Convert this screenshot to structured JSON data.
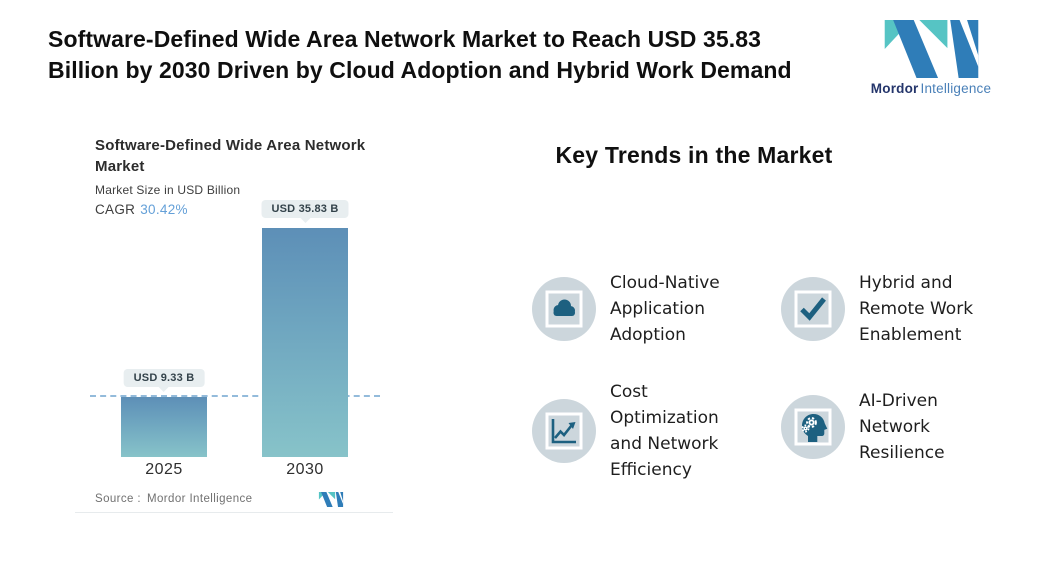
{
  "header": {
    "title_lines": [
      "Software-Defined Wide Area Network Market to Reach USD 35.83",
      "Billion by 2030 Driven by Cloud Adoption and Hybrid Work Demand"
    ],
    "brand": {
      "name_bold": "Mordor",
      "name_light": "Intelligence"
    }
  },
  "chart": {
    "title_lines": [
      "Software-Defined Wide Area Network",
      "Market"
    ],
    "subtitle": "Market Size in USD Billion",
    "cagr_label": "CAGR",
    "cagr_value": "30.42%",
    "bars": [
      {
        "year": "2025",
        "value_label": "USD 9.33 B"
      },
      {
        "year": "2030",
        "value_label": "USD 35.83 B"
      }
    ],
    "source_label": "Source :",
    "source_value": "Mordor Intelligence"
  },
  "chart_data": {
    "type": "bar",
    "title": "Software-Defined Wide Area Network Market",
    "ylabel": "Market Size in USD Billion",
    "categories": [
      "2025",
      "2030"
    ],
    "values": [
      9.33,
      35.83
    ],
    "data_labels": [
      "USD 9.33 B",
      "USD 35.83 B"
    ],
    "cagr_percent": 30.42,
    "ylim": [
      0,
      35.83
    ],
    "grid": false,
    "annotations": [
      "horizontal dashed reference line at 2025 value (9.33)"
    ],
    "bar_color_gradient": [
      "#5d8fb7",
      "#87c3c9"
    ],
    "source": "Mordor Intelligence"
  },
  "trends": {
    "heading": "Key Trends in the Market",
    "items": [
      {
        "icon": "cloud-icon",
        "label": "Cloud-Native Application Adoption",
        "lines": [
          "Cloud-Native",
          "Application",
          "Adoption"
        ]
      },
      {
        "icon": "checkmark-icon",
        "label": "Hybrid and Remote Work Enablement",
        "lines": [
          "Hybrid and",
          "Remote Work",
          "Enablement"
        ]
      },
      {
        "icon": "growth-chart-icon",
        "label": "Cost Optimization and Network Efficiency",
        "lines": [
          "Cost",
          "Optimization",
          "and Network",
          "Efficiency"
        ]
      },
      {
        "icon": "ai-head-icon",
        "label": "AI-Driven Network Resilience",
        "lines": [
          "AI-Driven",
          "Network",
          "Resilience"
        ]
      }
    ]
  },
  "colors": {
    "accent_teal": "#56c4c4",
    "accent_blue": "#2f7db8",
    "bar_gradient_top": "#5d8fb7",
    "bar_gradient_bottom": "#87c3c9",
    "dashed_line": "#93bbdb",
    "cagr_value": "#64a0d8",
    "trend_icon": "#1d6080",
    "trend_circle_bg": "#ccd6dc",
    "pill_bg": "#e8eef0",
    "brand_navy": "#24356b",
    "brand_blue": "#4a80b8"
  }
}
